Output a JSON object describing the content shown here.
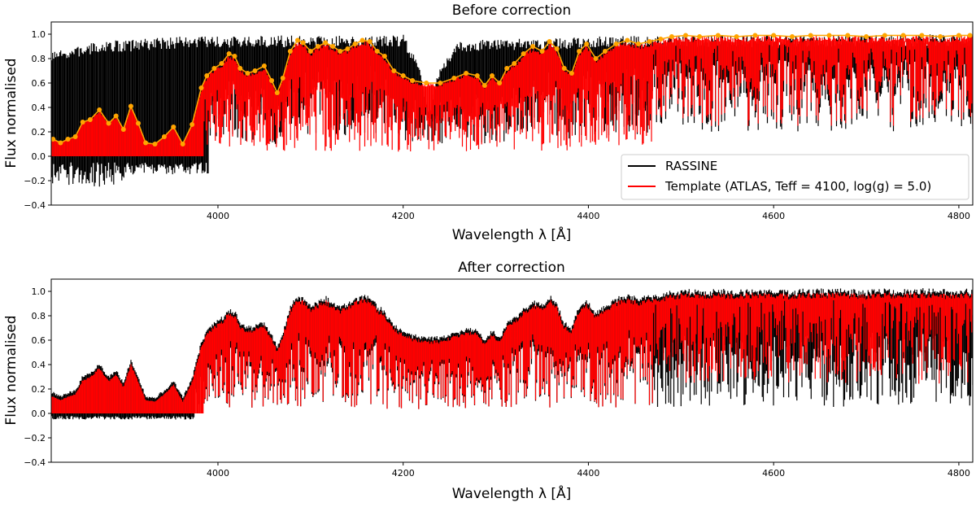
{
  "chart_data": [
    {
      "type": "line",
      "title": "Before correction",
      "xlabel": "Wavelength λ [Å]",
      "ylabel": "Flux normalised",
      "xlim": [
        3820,
        4815
      ],
      "ylim": [
        -0.4,
        1.1
      ],
      "xticks": [
        "4000",
        "4200",
        "4400",
        "4600",
        "4800"
      ],
      "yticks": [
        "−0.4",
        "−0.2",
        "0.0",
        "0.2",
        "0.4",
        "0.6",
        "0.8",
        "1.0"
      ],
      "legend": {
        "position": "lower-right",
        "entries": [
          "RASSINE",
          "Template (ATLAS, Teff = 4100, log(g) = 5.0)"
        ]
      },
      "series": [
        {
          "name": "RASSINE",
          "color": "#000000",
          "style": "dense absorption spectrum, normalised to continuum 1.0",
          "continuum_approx": {
            "x": [
              3820,
              3860,
              3880,
              3900,
              3930,
              3960,
              4000,
              4060,
              4100,
              4160,
              4200,
              4230,
              4260,
              4300,
              4360,
              4400,
              4500,
              4815
            ],
            "y": [
              0.85,
              0.92,
              0.95,
              0.95,
              0.97,
              0.98,
              0.98,
              0.99,
              0.99,
              0.99,
              1.0,
              0.6,
              0.95,
              0.96,
              0.97,
              0.98,
              0.99,
              1.0
            ]
          }
        },
        {
          "name": "Template (ATLAS, Teff = 4100, log(g) = 5.0)",
          "color": "#ff0000",
          "style": "synthetic absorption spectrum"
        },
        {
          "name": "continuum correction",
          "color": "#ffa500",
          "style": "spline with anchor points",
          "x": [
            3822,
            3830,
            3838,
            3846,
            3854,
            3862,
            3872,
            3882,
            3890,
            3898,
            3906,
            3914,
            3922,
            3932,
            3942,
            3952,
            3962,
            3972,
            3982,
            3988,
            3996,
            4004,
            4012,
            4018,
            4024,
            4032,
            4040,
            4050,
            4058,
            4064,
            4070,
            4078,
            4086,
            4092,
            4100,
            4108,
            4116,
            4124,
            4132,
            4140,
            4148,
            4156,
            4164,
            4172,
            4180,
            4190,
            4200,
            4210,
            4225,
            4240,
            4255,
            4268,
            4280,
            4288,
            4296,
            4304,
            4312,
            4320,
            4330,
            4340,
            4350,
            4358,
            4366,
            4374,
            4382,
            4390,
            4398,
            4408,
            4418,
            4430,
            4442,
            4454,
            4466,
            4478,
            4490,
            4505,
            4520,
            4540,
            4560,
            4580,
            4600,
            4620,
            4640,
            4660,
            4680,
            4700,
            4720,
            4740,
            4760,
            4780,
            4800,
            4812
          ],
          "y": [
            0.14,
            0.11,
            0.14,
            0.16,
            0.28,
            0.3,
            0.38,
            0.27,
            0.33,
            0.22,
            0.41,
            0.27,
            0.11,
            0.1,
            0.16,
            0.24,
            0.1,
            0.26,
            0.56,
            0.66,
            0.72,
            0.76,
            0.84,
            0.82,
            0.72,
            0.68,
            0.7,
            0.74,
            0.62,
            0.52,
            0.64,
            0.86,
            0.95,
            0.93,
            0.86,
            0.9,
            0.93,
            0.9,
            0.86,
            0.88,
            0.92,
            0.95,
            0.94,
            0.86,
            0.82,
            0.7,
            0.66,
            0.62,
            0.6,
            0.6,
            0.64,
            0.68,
            0.66,
            0.58,
            0.66,
            0.6,
            0.72,
            0.76,
            0.84,
            0.9,
            0.86,
            0.94,
            0.88,
            0.72,
            0.68,
            0.86,
            0.92,
            0.8,
            0.86,
            0.92,
            0.95,
            0.92,
            0.94,
            0.96,
            0.98,
            0.99,
            0.98,
            0.99,
            0.98,
            0.99,
            0.99,
            0.98,
            0.99,
            0.99,
            0.99,
            0.98,
            0.99,
            0.99,
            0.99,
            0.98,
            0.99,
            0.99
          ]
        }
      ]
    },
    {
      "type": "line",
      "title": "After correction",
      "xlabel": "Wavelength λ [Å]",
      "ylabel": "Flux normalised",
      "xlim": [
        3820,
        4815
      ],
      "ylim": [
        -0.4,
        1.1
      ],
      "xticks": [
        "4000",
        "4200",
        "4400",
        "4600",
        "4800"
      ],
      "yticks": [
        "−0.4",
        "−0.2",
        "0.0",
        "0.2",
        "0.4",
        "0.6",
        "0.8",
        "1.0"
      ],
      "series": [
        {
          "name": "RASSINE (corrected)",
          "color": "#000000",
          "style": "dense absorption spectrum"
        },
        {
          "name": "Template (ATLAS, Teff = 4100, log(g) = 5.0)",
          "color": "#ff0000",
          "style": "synthetic absorption spectrum"
        }
      ]
    }
  ]
}
